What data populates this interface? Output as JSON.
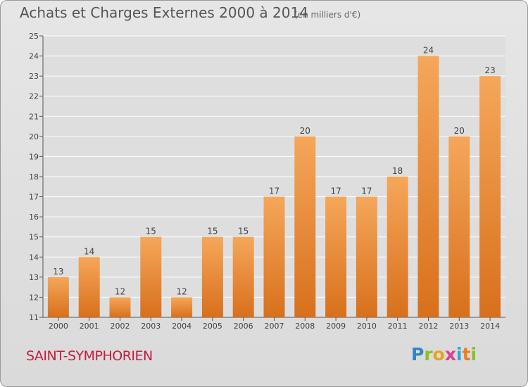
{
  "header": {
    "title": "Achats et Charges Externes 2000 à 2014",
    "subtitle": "(en milliers d'€)"
  },
  "footer": {
    "commune": "SAINT-SYMPHORIEN",
    "brand": "Proxiti",
    "brand_letters": [
      "P",
      "r",
      "o",
      "x",
      "i",
      "t",
      "i"
    ],
    "brand_colors": [
      "#2e86c8",
      "#8cbf26",
      "#e8a31a",
      "#e23c8c",
      "#32a6d6",
      "#f07d1a",
      "#8cbf26"
    ]
  },
  "chart_data": {
    "type": "bar",
    "title": "Achats et Charges Externes 2000 à 2014",
    "subtitle": "(en milliers d'€)",
    "categories": [
      "2000",
      "2001",
      "2002",
      "2003",
      "2004",
      "2005",
      "2006",
      "2007",
      "2008",
      "2009",
      "2010",
      "2011",
      "2012",
      "2013",
      "2014"
    ],
    "values": [
      13,
      14,
      12,
      15,
      12,
      15,
      15,
      17,
      20,
      17,
      17,
      18,
      24,
      20,
      23
    ],
    "ylim": [
      11,
      25
    ],
    "yticks": [
      11,
      12,
      13,
      14,
      15,
      16,
      17,
      18,
      19,
      20,
      21,
      22,
      23,
      24,
      25
    ],
    "grid": true,
    "bar_color_top": "#f5a75a",
    "bar_color_bottom": "#d8701c",
    "data_labels": true
  }
}
